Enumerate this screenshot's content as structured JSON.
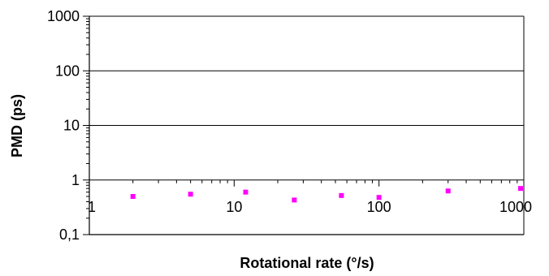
{
  "chart_data": {
    "type": "scatter",
    "title": "",
    "xlabel": "Rotational rate (°/s)",
    "ylabel": "PMD (ps)",
    "x_scale": "log",
    "y_scale": "log",
    "xlim": [
      1,
      1000
    ],
    "ylim": [
      0.1,
      1000
    ],
    "x_ticks": [
      "1",
      "10",
      "100",
      "1000"
    ],
    "y_ticks": [
      "0,1",
      "1",
      "10",
      "100",
      "1000"
    ],
    "grid": "horizontal",
    "legend": "none",
    "series": [
      {
        "marker": "square",
        "color": "#ff00ff",
        "x": [
          2,
          5,
          12,
          26,
          55,
          100,
          300,
          950
        ],
        "y": [
          0.5,
          0.55,
          0.6,
          0.43,
          0.52,
          0.48,
          0.63,
          0.7
        ]
      }
    ]
  }
}
